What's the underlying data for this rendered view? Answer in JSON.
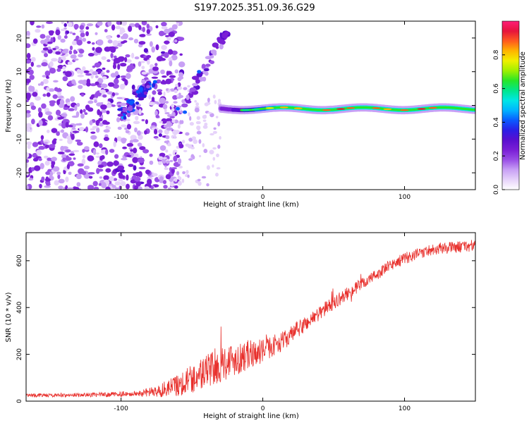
{
  "figure_title": "S197.2025.351.09.36.G29",
  "colors": {
    "snr_line": "#e8302c",
    "axis": "#000000",
    "colormap": [
      "#ffffff",
      "#e6d2fa",
      "#c8a0f5",
      "#9a50e6",
      "#7a1fd6",
      "#5a0fcf",
      "#2b1ee6",
      "#0a5aff",
      "#00b4ff",
      "#00e6e6",
      "#00e68c",
      "#28e628",
      "#a0f000",
      "#f0f000",
      "#ffb400",
      "#ff5a1e",
      "#e6143c",
      "#ff1e78"
    ]
  },
  "chart_data": [
    {
      "type": "heatmap",
      "title": "",
      "xlabel": "Height of straight line (km)",
      "ylabel": "Frequency (Hz)",
      "xlim": [
        -167,
        150
      ],
      "ylim": [
        -25,
        25
      ],
      "xticks": [
        -100,
        0,
        100
      ],
      "xtick_labels": [
        "-100",
        "0",
        "100"
      ],
      "yticks": [
        -20,
        -10,
        0,
        10,
        20
      ],
      "ytick_labels": [
        "-20",
        "-10",
        "0",
        "10",
        "20"
      ],
      "colorbar": {
        "label": "Normalized spectral amplitude",
        "range": [
          0,
          1
        ],
        "ticks": [
          0,
          0.2,
          0.4,
          0.6,
          0.8
        ],
        "tick_labels": [
          "0.0",
          "0.2",
          "0.4",
          "0.6",
          "0.8"
        ]
      },
      "features": [
        {
          "name": "noise region",
          "x_range": [
            -167,
            -65
          ],
          "y_range": [
            -25,
            25
          ],
          "amplitude": 0.15
        },
        {
          "name": "diagonal streak",
          "x_start": -100,
          "y_start": -3,
          "x_end": -78,
          "y_end": 7,
          "amplitude": 0.3
        },
        {
          "name": "upper streak",
          "x_start": -55,
          "y_start": 0,
          "x_end": -25,
          "y_end": 22,
          "amplitude": 0.2
        },
        {
          "name": "tone band",
          "x_range": [
            -30,
            150
          ],
          "y_center": -1,
          "amplitude_max": 0.9
        }
      ]
    },
    {
      "type": "line",
      "title": "",
      "xlabel": "Height of straight line (km)",
      "ylabel": "SNR (10 * v/v)",
      "xlim": [
        -167,
        150
      ],
      "ylim": [
        0,
        720
      ],
      "xticks": [
        -100,
        0,
        100
      ],
      "xtick_labels": [
        "-100",
        "0",
        "100"
      ],
      "yticks": [
        0,
        200,
        400,
        600
      ],
      "ytick_labels": [
        "0",
        "200",
        "400",
        "600"
      ],
      "series": [
        {
          "name": "SNR",
          "x": [
            -167,
            -140,
            -110,
            -90,
            -75,
            -60,
            -45,
            -30,
            -15,
            0,
            15,
            30,
            45,
            60,
            75,
            90,
            100,
            110,
            120,
            130,
            140,
            150
          ],
          "values": [
            25,
            25,
            28,
            32,
            40,
            70,
            110,
            160,
            190,
            215,
            260,
            330,
            400,
            460,
            520,
            580,
            610,
            630,
            650,
            655,
            660,
            665
          ],
          "noise_amplitude": [
            8,
            8,
            10,
            12,
            25,
            50,
            70,
            80,
            70,
            50,
            40,
            35,
            30,
            28,
            25,
            25,
            25,
            25,
            25,
            25,
            25,
            25
          ]
        }
      ]
    }
  ]
}
